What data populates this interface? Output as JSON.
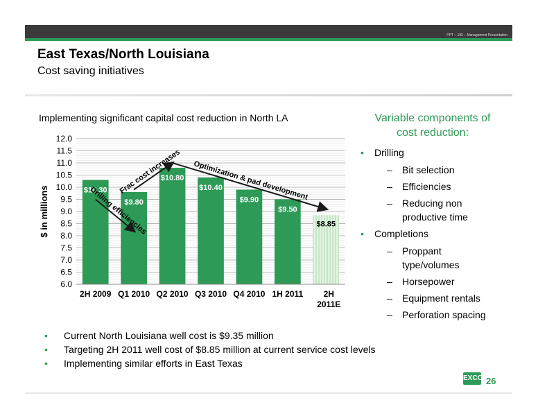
{
  "header": {
    "small_text": "PPT – 192 – Management Presentation",
    "title": "East Texas/North Louisiana",
    "subtitle": "Cost saving initiatives"
  },
  "chart_title": "Implementing significant capital cost reduction in North LA",
  "chart_data": {
    "type": "bar",
    "title": "Implementing significant capital cost reduction in North LA",
    "ylabel": "$ in millions",
    "xlabel": "",
    "ylim": [
      6.0,
      12.0
    ],
    "yticks": [
      "6.0",
      "6.5",
      "7.0",
      "7.5",
      "8.0",
      "8.5",
      "9.0",
      "9.5",
      "10.0",
      "10.5",
      "11.0",
      "11.5",
      "12.0"
    ],
    "categories": [
      "2H 2009",
      "Q1 2010",
      "Q2 2010",
      "Q3 2010",
      "Q4 2010",
      "1H 2011",
      "2H 2011E"
    ],
    "category_labels": [
      [
        "2H 2009"
      ],
      [
        "Q1 2010"
      ],
      [
        "Q2 2010"
      ],
      [
        "Q3 2010"
      ],
      [
        "Q4 2010"
      ],
      [
        "1H 2011"
      ],
      [
        "2H",
        "2011E"
      ]
    ],
    "values": [
      10.3,
      9.8,
      10.8,
      10.4,
      9.9,
      9.5,
      8.85
    ],
    "data_labels": [
      "$10.30",
      "$9.80",
      "$10.80",
      "$10.40",
      "$9.90",
      "$9.50",
      "$8.85"
    ],
    "estimate_index": 6,
    "grid": true,
    "colors": {
      "bar": "#2e9a57",
      "estimate": "#cdeacd"
    },
    "annotations": [
      {
        "text": "Drilling efficiencies",
        "from": {
          "x": "2H 2009",
          "y": 9.5
        },
        "to": {
          "x": "Q1 2010",
          "y": 8.2
        }
      },
      {
        "text": "Frac cost increases",
        "from": {
          "x": "Q1 2010",
          "y": 9.9
        },
        "to": {
          "x": "Q2 2010",
          "y": 11.0
        }
      },
      {
        "text": "Optimization & pad development",
        "from": {
          "x": "Q2 2010",
          "y": 11.0
        },
        "to": {
          "x": "2H 2011E",
          "y": 9.1
        }
      }
    ]
  },
  "right_panel": {
    "heading": "Variable components of cost reduction:",
    "drilling_label": "Drilling",
    "drilling_items": [
      "Bit selection",
      "Efficiencies",
      "Reducing non productive time"
    ],
    "completions_label": "Completions",
    "completions_items": [
      "Proppant type/volumes",
      "Horsepower",
      "Equipment rentals",
      "Perforation spacing"
    ]
  },
  "bullets": [
    "Current North Louisiana well cost is $9.35 million",
    "Targeting 2H 2011 well cost of $8.85 million at current service cost levels",
    "Implementing  similar efforts in East Texas"
  ],
  "footer": {
    "logo_text": "EXCO",
    "page_number": "26"
  },
  "colors": {
    "accent": "#2e9a57",
    "top_bar": "#3a3a3a"
  }
}
